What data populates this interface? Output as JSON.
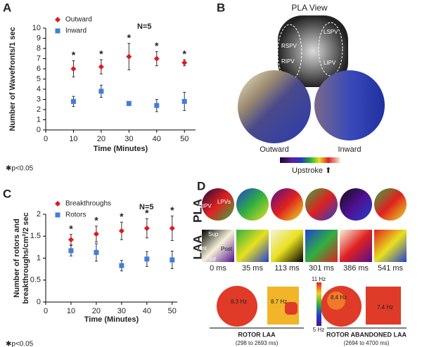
{
  "chart_data": [
    {
      "type": "scatter",
      "panel": "A",
      "xlabel": "Time (Minutes)",
      "ylabel": [
        "Number of Wavefronts/1 sec"
      ],
      "x": [
        10,
        20,
        30,
        40,
        50
      ],
      "xlim": [
        0,
        54
      ],
      "xticks": [
        0,
        10,
        20,
        30,
        40,
        50
      ],
      "ylim": [
        0,
        10
      ],
      "yticks": [
        0,
        1,
        2,
        3,
        4,
        5,
        6,
        7,
        8,
        9,
        10
      ],
      "series": [
        {
          "name": "Outward",
          "color": "#e0181f",
          "marker": "diamond",
          "values": [
            6.0,
            6.2,
            7.2,
            7.0,
            6.6
          ],
          "errors": [
            0.8,
            0.7,
            1.3,
            0.7,
            0.3
          ],
          "significance": [
            "*",
            "*",
            "*",
            "*",
            "*"
          ]
        },
        {
          "name": "Inward",
          "color": "#3f7fd9",
          "marker": "square",
          "values": [
            2.8,
            3.8,
            2.6,
            2.4,
            2.8
          ],
          "errors": [
            0.5,
            0.6,
            0.2,
            0.6,
            0.9
          ]
        }
      ],
      "legend": "upper left",
      "n_label": "N=5",
      "note": "✱p<0.05"
    },
    {
      "type": "scatter",
      "panel": "C",
      "xlabel": "Time (Minutes)",
      "ylabel": [
        "Number of rotors and",
        "breakthroughs/cm²/2 sec"
      ],
      "x": [
        10,
        20,
        30,
        40,
        50
      ],
      "xlim": [
        0,
        52
      ],
      "xticks": [
        0,
        10,
        20,
        30,
        40,
        50
      ],
      "ylim": [
        0,
        2
      ],
      "yticks": [
        0,
        0.5,
        1,
        1.5,
        2
      ],
      "series": [
        {
          "name": "Breakthroughs",
          "color": "#e0181f",
          "marker": "diamond",
          "values": [
            1.42,
            1.55,
            1.62,
            1.68,
            1.68
          ],
          "errors": [
            0.12,
            0.18,
            0.2,
            0.22,
            0.28
          ],
          "significance": [
            "*",
            "*",
            "*",
            "*",
            "*"
          ]
        },
        {
          "name": "Rotors",
          "color": "#3f7fd9",
          "marker": "square",
          "values": [
            1.17,
            1.13,
            0.83,
            0.98,
            0.96
          ],
          "errors": [
            0.12,
            0.2,
            0.12,
            0.17,
            0.2
          ]
        }
      ],
      "legend": "upper left",
      "n_label": "N=5",
      "note": "✱p<0.05"
    }
  ],
  "panel_b": {
    "label": "B",
    "title": "PLA View",
    "veins": [
      "LSPV",
      "RSPV",
      "RIPV",
      "LIPV"
    ],
    "maps": [
      "Outward",
      "Inward"
    ],
    "colorbar": "Upstroke ⬆"
  },
  "panel_d": {
    "label": "D",
    "rows": [
      "PLA",
      "LAA"
    ],
    "pla_labels": [
      "RIPV",
      "LPVs"
    ],
    "laa_labels": [
      "Sup",
      "Post",
      "Ant",
      "Inf"
    ],
    "times": [
      "0 ms",
      "35 ms",
      "113 ms",
      "301 ms",
      "386 ms",
      "541 ms"
    ],
    "frequencies": [
      "8.3 Hz",
      "8.7 Hz",
      "8.4 Hz",
      "7.4 Hz"
    ],
    "scale": [
      "11 Hz",
      "5 Hz"
    ],
    "groups": [
      {
        "title": "ROTOR LAA",
        "range": "(298 to 2693 ms)"
      },
      {
        "title": "ROTOR ABANDONED LAA",
        "range": "(2694 to 4700 ms)"
      }
    ]
  }
}
